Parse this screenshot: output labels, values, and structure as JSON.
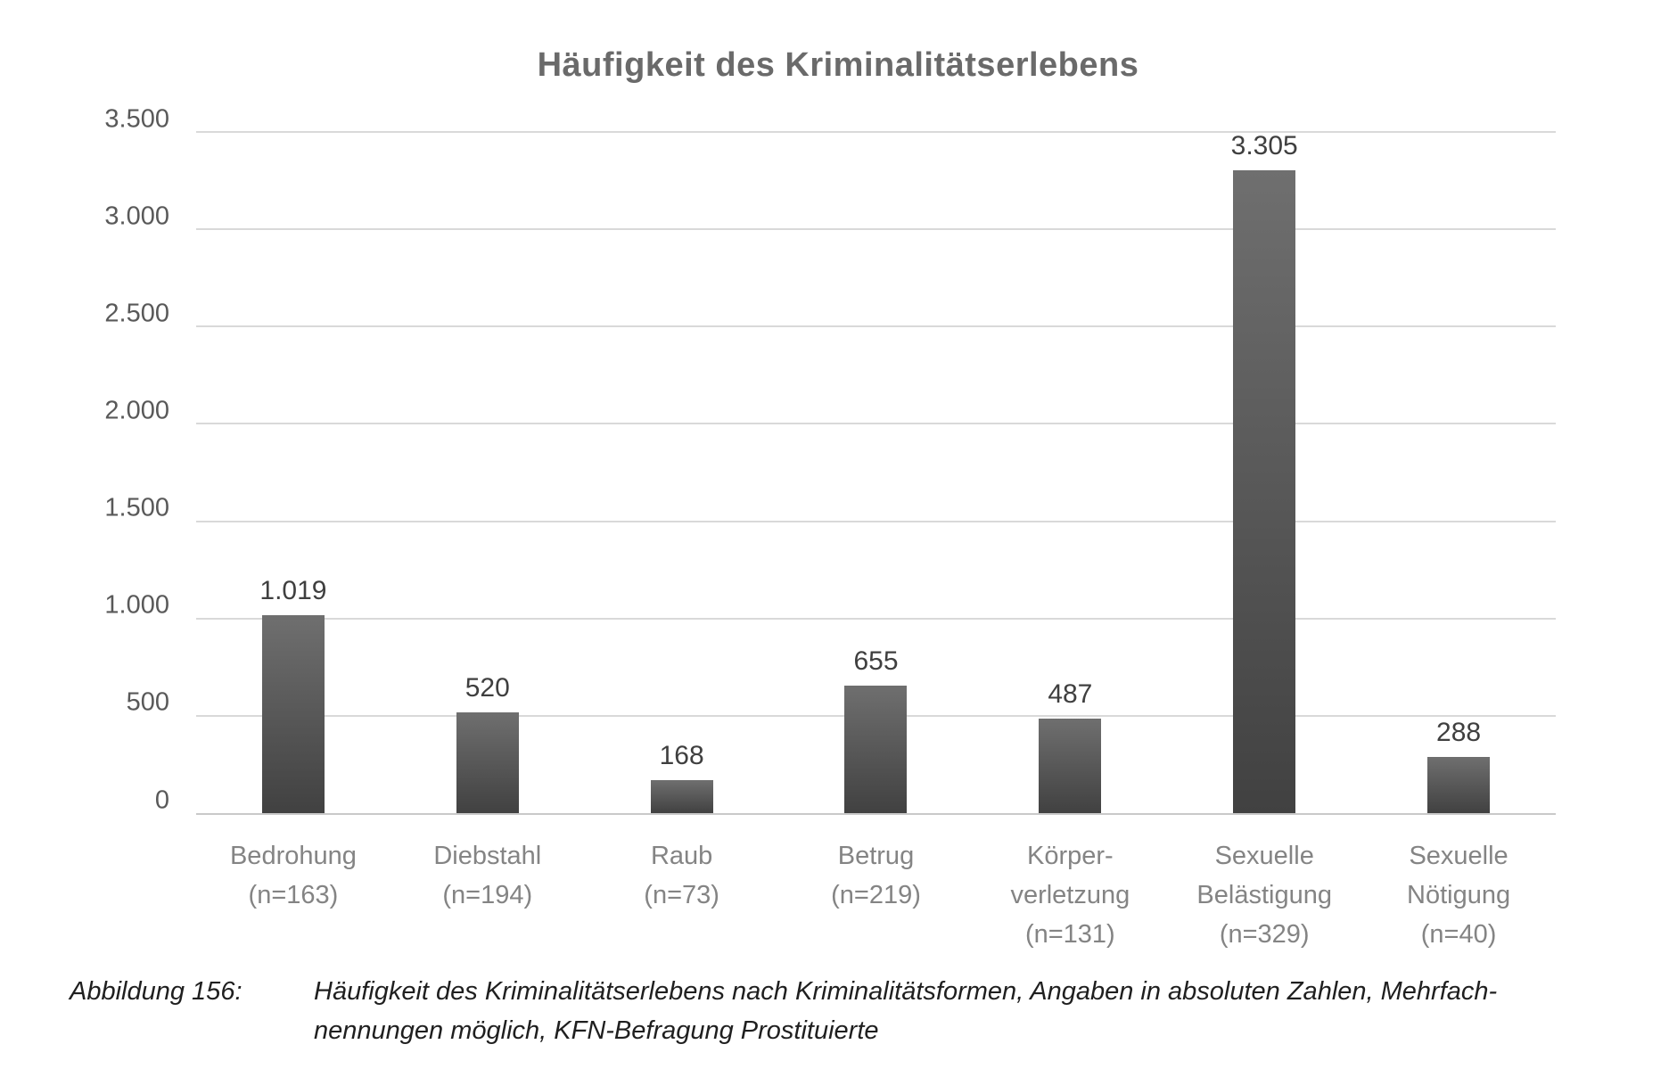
{
  "chart_data": {
    "type": "bar",
    "title": "Häufigkeit des Kriminalitätserlebens",
    "xlabel": "",
    "ylabel": "",
    "ylim": [
      0,
      3500
    ],
    "ytick_step": 500,
    "grid": true,
    "legend": false,
    "yticks": [
      {
        "value": 0,
        "label": "0"
      },
      {
        "value": 500,
        "label": "500"
      },
      {
        "value": 1000,
        "label": "1.000"
      },
      {
        "value": 1500,
        "label": "1.500"
      },
      {
        "value": 2000,
        "label": "2.000"
      },
      {
        "value": 2500,
        "label": "2.500"
      },
      {
        "value": 3000,
        "label": "3.000"
      },
      {
        "value": 3500,
        "label": "3.500"
      }
    ],
    "bars": [
      {
        "category": "Bedrohung (n=163)",
        "category_lines": [
          "Bedrohung",
          "(n=163)"
        ],
        "value": 1019,
        "value_label": "1.019"
      },
      {
        "category": "Diebstahl (n=194)",
        "category_lines": [
          "Diebstahl",
          "(n=194)"
        ],
        "value": 520,
        "value_label": "520"
      },
      {
        "category": "Raub (n=73)",
        "category_lines": [
          "Raub",
          "(n=73)"
        ],
        "value": 168,
        "value_label": "168"
      },
      {
        "category": "Betrug (n=219)",
        "category_lines": [
          "Betrug",
          "(n=219)"
        ],
        "value": 655,
        "value_label": "655"
      },
      {
        "category": "Körperverletzung (n=131)",
        "category_lines": [
          "Körper-",
          "verletzung",
          "(n=131)"
        ],
        "value": 487,
        "value_label": "487"
      },
      {
        "category": "Sexuelle Belästigung (n=329)",
        "category_lines": [
          "Sexuelle",
          "Belästigung",
          "(n=329)"
        ],
        "value": 3305,
        "value_label": "3.305"
      },
      {
        "category": "Sexuelle Nötigung (n=40)",
        "category_lines": [
          "Sexuelle",
          "Nötigung",
          "(n=40)"
        ],
        "value": 288,
        "value_label": "288"
      }
    ],
    "colors": {
      "bar_top": "#6f6f6f",
      "bar_bottom": "#414141",
      "gridline": "#d9d9d9",
      "axis_line": "#c9c9c9",
      "title_text": "#6a6a6a",
      "ytick_text": "#595959",
      "xtick_text": "#848484",
      "value_label_text": "#3f3f3f"
    }
  },
  "caption": {
    "label": "Abbildung 156:",
    "lines": [
      "Häufigkeit des Kriminalitätserlebens nach Kriminalitätsformen, Angaben in absoluten Zahlen, Mehrfach-",
      "nennungen möglich, KFN-Befragung Prostituierte"
    ]
  }
}
